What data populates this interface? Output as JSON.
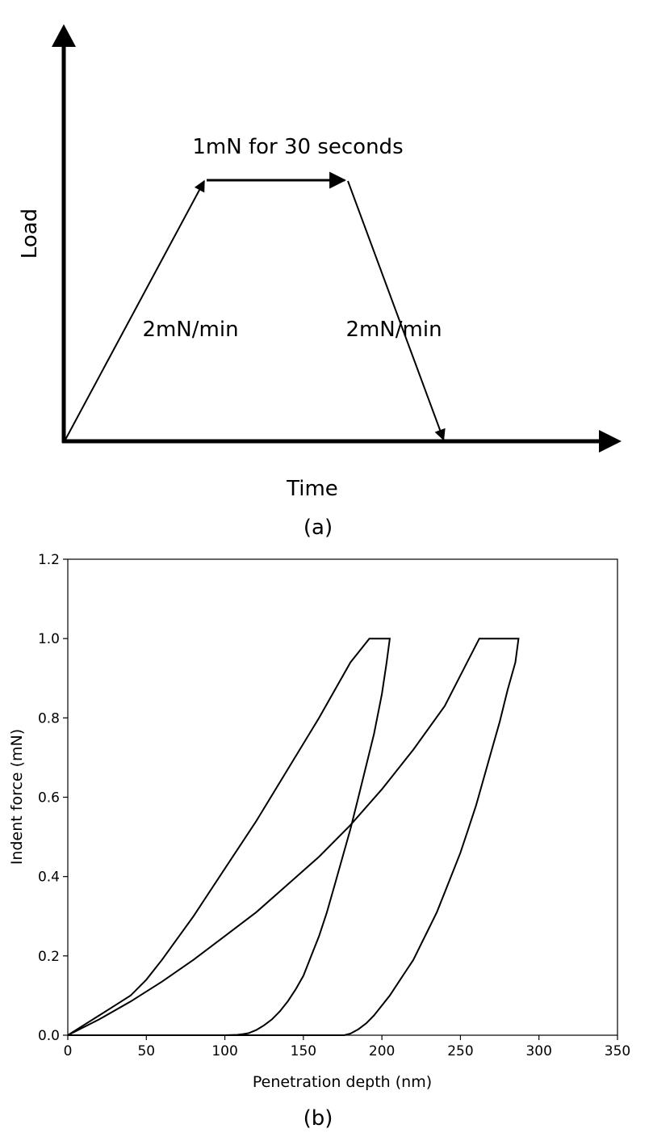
{
  "chart_data": [
    {
      "type": "diagram",
      "panel_label": "(a)",
      "xlabel": "Time",
      "ylabel": "Load",
      "hold_annotation": "1mN for 30 seconds",
      "loading_rate_label": "2mN/min",
      "unloading_rate_label": "2mN/min",
      "profile": [
        {
          "t": 0,
          "load": 0
        },
        {
          "t": 1,
          "load": 1
        },
        {
          "t": 2,
          "load": 1
        },
        {
          "t": 2.7,
          "load": 0
        }
      ],
      "t_range": [
        0,
        3.0
      ],
      "load_range": [
        0,
        1.45
      ]
    },
    {
      "type": "line",
      "panel_label": "(b)",
      "xlabel": "Penetration depth (nm)",
      "ylabel": "Indent force (mN)",
      "xlim": [
        0,
        350
      ],
      "ylim": [
        0,
        1.2
      ],
      "xticks": [
        "0",
        "50",
        "100",
        "150",
        "200",
        "250",
        "300",
        "350"
      ],
      "yticks": [
        "0.0",
        "0.2",
        "0.4",
        "0.6",
        "0.8",
        "1.0",
        "1.2"
      ],
      "grid": false,
      "series": [
        {
          "x": [
            0,
            10,
            20,
            30,
            40,
            50,
            60,
            80,
            100,
            120,
            140,
            160,
            180,
            192,
            205,
            203,
            200,
            195,
            190,
            185,
            180,
            175,
            170,
            165,
            160,
            155,
            150,
            145,
            140,
            135,
            130,
            125,
            120,
            115,
            112,
            108,
            100,
            50,
            0
          ],
          "y": [
            0,
            0.025,
            0.05,
            0.075,
            0.1,
            0.14,
            0.19,
            0.3,
            0.42,
            0.54,
            0.67,
            0.8,
            0.94,
            1.0,
            1.0,
            0.94,
            0.86,
            0.76,
            0.68,
            0.6,
            0.52,
            0.45,
            0.38,
            0.31,
            0.25,
            0.2,
            0.15,
            0.115,
            0.085,
            0.06,
            0.04,
            0.025,
            0.013,
            0.005,
            0.003,
            0.001,
            0,
            0,
            0
          ]
        },
        {
          "x": [
            0,
            20,
            40,
            60,
            80,
            100,
            120,
            140,
            160,
            180,
            200,
            220,
            240,
            262,
            287,
            285,
            280,
            275,
            270,
            265,
            260,
            255,
            250,
            245,
            240,
            235,
            230,
            225,
            220,
            215,
            210,
            205,
            200,
            195,
            190,
            185,
            180,
            176,
            150,
            100,
            50,
            0
          ],
          "y": [
            0,
            0.04,
            0.085,
            0.135,
            0.19,
            0.25,
            0.31,
            0.38,
            0.45,
            0.53,
            0.62,
            0.72,
            0.83,
            1.0,
            1.0,
            0.94,
            0.87,
            0.79,
            0.72,
            0.65,
            0.58,
            0.52,
            0.46,
            0.41,
            0.36,
            0.31,
            0.27,
            0.23,
            0.19,
            0.16,
            0.13,
            0.1,
            0.075,
            0.05,
            0.03,
            0.015,
            0.004,
            0,
            0,
            0,
            0,
            0
          ]
        }
      ]
    }
  ]
}
